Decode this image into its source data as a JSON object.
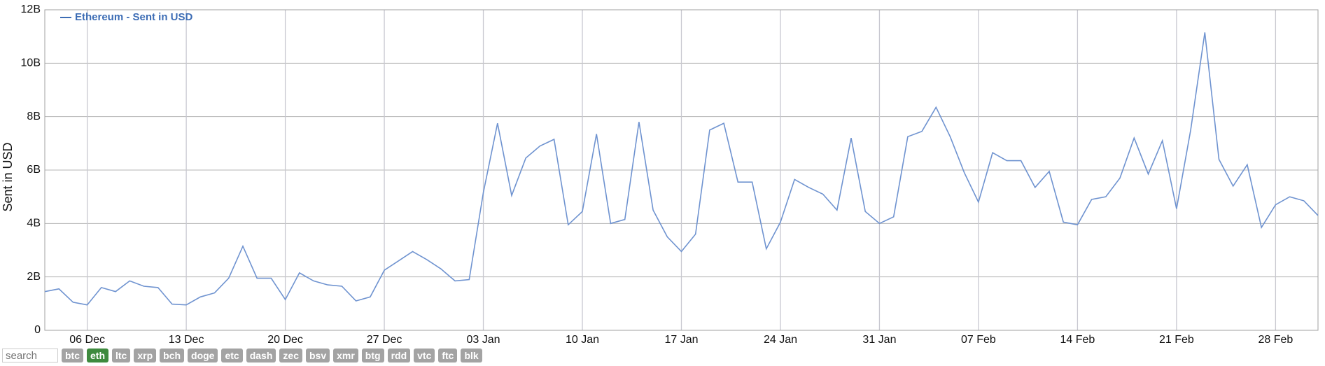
{
  "chart_data": {
    "type": "line",
    "y_label": "Sent in USD",
    "categories": [
      null,
      null,
      null,
      "06 Dec",
      null,
      null,
      null,
      null,
      null,
      null,
      "13 Dec",
      null,
      null,
      null,
      null,
      null,
      null,
      "20 Dec",
      null,
      null,
      null,
      null,
      null,
      null,
      "27 Dec",
      null,
      null,
      null,
      null,
      null,
      null,
      "03 Jan",
      null,
      null,
      null,
      null,
      null,
      null,
      "10 Jan",
      null,
      null,
      null,
      null,
      null,
      null,
      "17 Jan",
      null,
      null,
      null,
      null,
      null,
      null,
      "24 Jan",
      null,
      null,
      null,
      null,
      null,
      null,
      "31 Jan",
      null,
      null,
      null,
      null,
      null,
      null,
      "07 Feb",
      null,
      null,
      null,
      null,
      null,
      null,
      "14 Feb",
      null,
      null,
      null,
      null,
      null,
      null,
      "21 Feb",
      null,
      null,
      null,
      null,
      null,
      null,
      "28 Feb",
      null,
      null,
      null
    ],
    "series": [
      {
        "name": "Ethereum - Sent in USD",
        "color": "#6f93d0",
        "values": [
          1450000000.0,
          1550000000.0,
          1050000000.0,
          950000000.0,
          1600000000.0,
          1450000000.0,
          1850000000.0,
          1650000000.0,
          1600000000.0,
          980000000.0,
          950000000.0,
          1250000000.0,
          1400000000.0,
          1950000000.0,
          3150000000.0,
          1950000000.0,
          1950000000.0,
          1150000000.0,
          2150000000.0,
          1850000000.0,
          1700000000.0,
          1650000000.0,
          1100000000.0,
          1250000000.0,
          2250000000.0,
          2600000000.0,
          2950000000.0,
          2650000000.0,
          2300000000.0,
          1850000000.0,
          1900000000.0,
          5150000000.0,
          7750000000.0,
          5050000000.0,
          6450000000.0,
          6900000000.0,
          7150000000.0,
          3950000000.0,
          4450000000.0,
          7350000000.0,
          4000000000.0,
          4150000000.0,
          7800000000.0,
          4500000000.0,
          3500000000.0,
          2950000000.0,
          3600000000.0,
          7500000000.0,
          7750000000.0,
          5550000000.0,
          5550000000.0,
          3050000000.0,
          4050000000.0,
          5650000000.0,
          5350000000.0,
          5100000000.0,
          4500000000.0,
          7200000000.0,
          4450000000.0,
          4000000000.0,
          4250000000.0,
          7250000000.0,
          7450000000.0,
          8350000000.0,
          7250000000.0,
          5900000000.0,
          4800000000.0,
          6650000000.0,
          6350000000.0,
          6350000000.0,
          5350000000.0,
          5950000000.0,
          4050000000.0,
          3950000000.0,
          4900000000.0,
          5000000000.0,
          5700000000.0,
          7200000000.0,
          5850000000.0,
          7100000000.0,
          4550000000.0,
          7500000000.0,
          11150000000.0,
          6400000000.0,
          5400000000.0,
          6200000000.0,
          3850000000.0,
          4700000000.0,
          5000000000.0,
          4850000000.0,
          4300000000.0
        ]
      }
    ],
    "ylim": [
      0,
      12000000000.0
    ],
    "yticks": [
      0,
      {
        "value": 2000000000.0,
        "label": "2B"
      },
      {
        "value": 4000000000.0,
        "label": "4B"
      },
      {
        "value": 6000000000.0,
        "label": "6B"
      },
      {
        "value": 8000000000.0,
        "label": "8B"
      },
      {
        "value": 10000000000.0,
        "label": "10B"
      },
      {
        "value": 12000000000.0,
        "label": "12B"
      }
    ],
    "grid": true,
    "legend": "top-left"
  },
  "controls": {
    "search_placeholder": "search",
    "coins": [
      "btc",
      "eth",
      "ltc",
      "xrp",
      "bch",
      "doge",
      "etc",
      "dash",
      "zec",
      "bsv",
      "xmr",
      "btg",
      "rdd",
      "vtc",
      "ftc",
      "blk"
    ],
    "active_coin": "eth",
    "active_color": "#3e8a3e",
    "inactive_color": "#a3a3a3"
  }
}
